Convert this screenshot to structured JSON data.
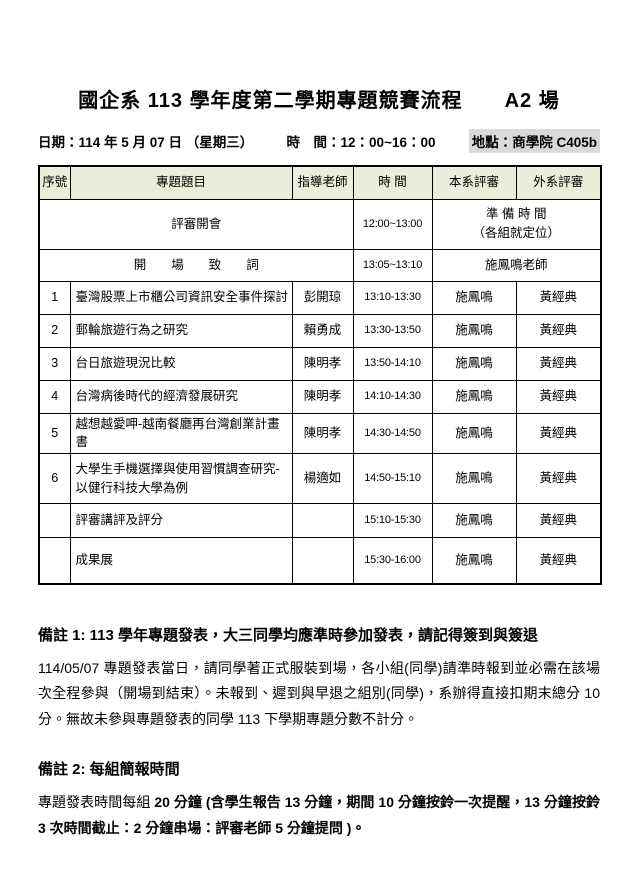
{
  "title": {
    "main": "國企系 113 學年度第二學期專題競賽流程",
    "venue": "A2 場"
  },
  "meta": {
    "date": "日期：114 年 5 月 07 日 （星期三）",
    "time": "時　間：12：00~16：00",
    "location": "地點：商學院 C405b"
  },
  "table": {
    "headers": [
      "序號",
      "專題題目",
      "指導老師",
      "時 間",
      "本系評審",
      "外系評審"
    ],
    "rows": [
      {
        "cells": [
          {
            "t": "評審開會",
            "cs": 3
          },
          {
            "t": "12:00~13:00",
            "time": true
          },
          {
            "t": "準 備 時 間\n（各組就定位）",
            "cs": 2
          }
        ]
      },
      {
        "cells": [
          {
            "t": "開　　場　　致　　詞",
            "cs": 3
          },
          {
            "t": "13:05~13:10",
            "time": true
          },
          {
            "t": "施鳳鳴老師",
            "cs": 2
          }
        ]
      },
      {
        "cells": [
          {
            "t": "1"
          },
          {
            "t": "臺灣股票上市櫃公司資訊安全事件探討",
            "left": true
          },
          {
            "t": "彭開琼"
          },
          {
            "t": "13:10-13:30",
            "time": true
          },
          {
            "t": "施鳳鳴"
          },
          {
            "t": "黃經典"
          }
        ]
      },
      {
        "cells": [
          {
            "t": "2"
          },
          {
            "t": "郵輪旅遊行為之研究",
            "left": true
          },
          {
            "t": "賴勇成"
          },
          {
            "t": "13:30-13:50",
            "time": true
          },
          {
            "t": "施鳳鳴"
          },
          {
            "t": "黃經典"
          }
        ]
      },
      {
        "cells": [
          {
            "t": "3"
          },
          {
            "t": "台日旅遊現況比較",
            "left": true
          },
          {
            "t": "陳明孝"
          },
          {
            "t": "13:50-14:10",
            "time": true
          },
          {
            "t": "施鳳鳴"
          },
          {
            "t": "黃經典"
          }
        ]
      },
      {
        "cells": [
          {
            "t": "4"
          },
          {
            "t": "台灣病後時代的經濟發展研究",
            "left": true
          },
          {
            "t": "陳明孝"
          },
          {
            "t": "14:10-14:30",
            "time": true
          },
          {
            "t": "施鳳鳴"
          },
          {
            "t": "黃經典"
          }
        ]
      },
      {
        "cells": [
          {
            "t": "5"
          },
          {
            "t": "越想越愛呷-越南餐廳再台灣創業計畫書",
            "left": true
          },
          {
            "t": "陳明孝"
          },
          {
            "t": "14:30-14:50",
            "time": true
          },
          {
            "t": "施鳳鳴"
          },
          {
            "t": "黃經典"
          }
        ]
      },
      {
        "cells": [
          {
            "t": "6"
          },
          {
            "t": "大學生手機選擇與使用習慣調查研究-以健行科技大學為例",
            "left": true
          },
          {
            "t": "楊適如"
          },
          {
            "t": "14:50-15:10",
            "time": true
          },
          {
            "t": "施鳳鳴"
          },
          {
            "t": "黃經典"
          }
        ]
      },
      {
        "cells": [
          {
            "t": ""
          },
          {
            "t": "評審講評及評分",
            "left": true
          },
          {
            "t": ""
          },
          {
            "t": "15:10-15:30",
            "time": true
          },
          {
            "t": "施鳳鳴"
          },
          {
            "t": "黃經典"
          }
        ]
      },
      {
        "cells": [
          {
            "t": ""
          },
          {
            "t": "成果展",
            "left": true
          },
          {
            "t": ""
          },
          {
            "t": "15:30-16:00",
            "time": true
          },
          {
            "t": "施鳳鳴"
          },
          {
            "t": "黃經典"
          }
        ]
      }
    ]
  },
  "notes": {
    "note1_heading": "備註 1: 113 學年專題發表，大三同學均應準時參加發表，請記得簽到與簽退",
    "note1_body": "114/05/07 專題發表當日，請同學著正式服裝到場，各小組(同學)請準時報到並必需在該場次全程參與（開場到結束）。未報到、遲到與早退之組別(同學)，系辦得直接扣期末總分 10 分。無故未參與專題發表的同學 113 下學期專題分數不計分。",
    "note2_heading": "備註 2: 每組簡報時間",
    "note2_body_normal": "專題發表時間每組 ",
    "note2_body_bold": "20 分鐘 (含學生報告 13 分鐘，期間 10 分鐘按鈴一次提醒，13 分鐘按鈴 3 次時間截止：2 分鐘串場：評審老師 5 分鐘提問 )。"
  },
  "colors": {
    "header_bg": "#e9edd9",
    "highlight_bg": "#d9d9d9",
    "border": "#000000"
  }
}
